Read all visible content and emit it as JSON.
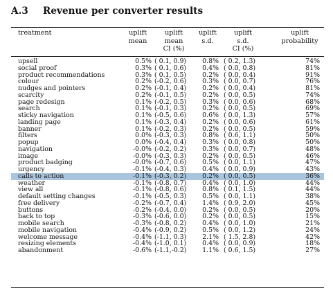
{
  "section": {
    "number": "A.3",
    "title": "Revenue per converter results"
  },
  "table": {
    "headers": [
      {
        "key": "treatment",
        "label": "treatment"
      },
      {
        "key": "uplift_mean",
        "label": "uplift\nmean"
      },
      {
        "key": "uplift_mean_ci",
        "label": "uplift\nmean\nCI (%)"
      },
      {
        "key": "uplift_sd",
        "label": "uplift\ns.d."
      },
      {
        "key": "uplift_sd_ci",
        "label": "uplift\ns.d.\nCI (%)"
      },
      {
        "key": "uplift_probability",
        "label": "uplift\nprobability"
      }
    ],
    "highlighted_row": "calls to action",
    "rows": [
      {
        "treatment": "upsell",
        "mean": "0.5%",
        "ci": "( 0.1, 0.9)",
        "sd": "0.8%",
        "sd_ci": "( 0.2, 1.3)",
        "prob": "74%"
      },
      {
        "treatment": "social proof",
        "mean": "0.3%",
        "ci": "( 0.1, 0.6)",
        "sd": "0.4%",
        "sd_ci": "( 0.0, 0.8)",
        "prob": "81%"
      },
      {
        "treatment": "product recommendations",
        "mean": "0.3%",
        "ci": "( 0.1, 0.5)",
        "sd": "0.2%",
        "sd_ci": "( 0.0, 0.4)",
        "prob": "91%"
      },
      {
        "treatment": "colour",
        "mean": "0.2%",
        "ci": "(-0.2, 0.6)",
        "sd": "0.3%",
        "sd_ci": "( 0.0, 0.7)",
        "prob": "76%"
      },
      {
        "treatment": "nudges and pointers",
        "mean": "0.2%",
        "ci": "(-0.1, 0.4)",
        "sd": "0.2%",
        "sd_ci": "( 0.0, 0.4)",
        "prob": "81%"
      },
      {
        "treatment": "scarcity",
        "mean": "0.2%",
        "ci": "(-0.1, 0.5)",
        "sd": "0.2%",
        "sd_ci": "( 0.0, 0.5)",
        "prob": "74%"
      },
      {
        "treatment": "page redesign",
        "mean": "0.1%",
        "ci": "(-0.2, 0.5)",
        "sd": "0.3%",
        "sd_ci": "( 0.0, 0.6)",
        "prob": "68%"
      },
      {
        "treatment": "search",
        "mean": "0.1%",
        "ci": "(-0.1, 0.3)",
        "sd": "0.2%",
        "sd_ci": "( 0.0, 0.5)",
        "prob": "69%"
      },
      {
        "treatment": "sticky navigation",
        "mean": "0.1%",
        "ci": "(-0.5, 0.6)",
        "sd": "0.6%",
        "sd_ci": "( 0.0, 1.3)",
        "prob": "57%"
      },
      {
        "treatment": "landing page",
        "mean": "0.1%",
        "ci": "(-0.3, 0.4)",
        "sd": "0.2%",
        "sd_ci": "( 0.0, 0.6)",
        "prob": "61%"
      },
      {
        "treatment": "banner",
        "mean": "0.1%",
        "ci": "(-0.2, 0.3)",
        "sd": "0.2%",
        "sd_ci": "( 0.0, 0.5)",
        "prob": "59%"
      },
      {
        "treatment": "filters",
        "mean": "0.0%",
        "ci": "(-0.3, 0.3)",
        "sd": "0.8%",
        "sd_ci": "( 0.6, 1.1)",
        "prob": "50%"
      },
      {
        "treatment": "popup",
        "mean": "0.0%",
        "ci": "(-0.4, 0.4)",
        "sd": "0.3%",
        "sd_ci": "( 0.0, 0.8)",
        "prob": "50%"
      },
      {
        "treatment": "navigation",
        "mean": "-0.0%",
        "ci": "(-0.2, 0.2)",
        "sd": "0.3%",
        "sd_ci": "( 0.0, 0.7)",
        "prob": "48%"
      },
      {
        "treatment": "image",
        "mean": "-0.0%",
        "ci": "(-0.3, 0.3)",
        "sd": "0.2%",
        "sd_ci": "( 0.0, 0.5)",
        "prob": "46%"
      },
      {
        "treatment": "product badging",
        "mean": "-0.0%",
        "ci": "(-0.7, 0.6)",
        "sd": "0.5%",
        "sd_ci": "( 0.0, 1.1)",
        "prob": "47%"
      },
      {
        "treatment": "urgency",
        "mean": "-0.1%",
        "ci": "(-0.4, 0.3)",
        "sd": "0.4%",
        "sd_ci": "( 0.0, 0.9)",
        "prob": "43%"
      },
      {
        "treatment": "calls to action",
        "mean": "-0.1%",
        "ci": "(-0.3, 0.2)",
        "sd": "0.2%",
        "sd_ci": "( 0.0, 0.5)",
        "prob": "36%"
      },
      {
        "treatment": "weather",
        "mean": "-0.1%",
        "ci": "(-0.8, 0.7)",
        "sd": "0.4%",
        "sd_ci": "( 0.0, 1.0)",
        "prob": "44%"
      },
      {
        "treatment": "view all",
        "mean": "-0.1%",
        "ci": "(-0.8, 0.6)",
        "sd": "0.8%",
        "sd_ci": "( 0.1, 1.5)",
        "prob": "44%"
      },
      {
        "treatment": "default setting changes",
        "mean": "-0.1%",
        "ci": "(-0.5, 0.3)",
        "sd": "0.5%",
        "sd_ci": "( 0.0, 1.1)",
        "prob": "38%"
      },
      {
        "treatment": "free delivery",
        "mean": "-0.2%",
        "ci": "(-0.7, 0.4)",
        "sd": "1.4%",
        "sd_ci": "( 0.9, 2.0)",
        "prob": "45%"
      },
      {
        "treatment": "buttons",
        "mean": "-0.2%",
        "ci": "(-0.4, 0.0)",
        "sd": "0.2%",
        "sd_ci": "( 0.0, 0.5)",
        "prob": "20%"
      },
      {
        "treatment": "back to top",
        "mean": "-0.3%",
        "ci": "(-0.6, 0.0)",
        "sd": "0.2%",
        "sd_ci": "( 0.0, 0.5)",
        "prob": "15%"
      },
      {
        "treatment": "mobile search",
        "mean": "-0.3%",
        "ci": "(-0.8, 0.2)",
        "sd": "0.4%",
        "sd_ci": "( 0.0, 1.0)",
        "prob": "21%"
      },
      {
        "treatment": "mobile navigation",
        "mean": "-0.4%",
        "ci": "(-0.9, 0.2)",
        "sd": "0.5%",
        "sd_ci": "( 0.0, 1.2)",
        "prob": "24%"
      },
      {
        "treatment": "welcome message",
        "mean": "-0.4%",
        "ci": "(-1.1, 0.3)",
        "sd": "2.1%",
        "sd_ci": "( 1.5, 2.8)",
        "prob": "42%"
      },
      {
        "treatment": "resizing elements",
        "mean": "-0.4%",
        "ci": "(-1.0, 0.1)",
        "sd": "0.4%",
        "sd_ci": "( 0.0, 0.9)",
        "prob": "18%"
      },
      {
        "treatment": "abandonment",
        "mean": "-0.6%",
        "ci": "(-1.1,-0.2)",
        "sd": "1.1%",
        "sd_ci": "( 0.6, 1.5)",
        "prob": "27%"
      }
    ]
  },
  "colors": {
    "highlight_row_bg": "#a9c5dd",
    "text": "#111111",
    "rules": "#111111"
  }
}
